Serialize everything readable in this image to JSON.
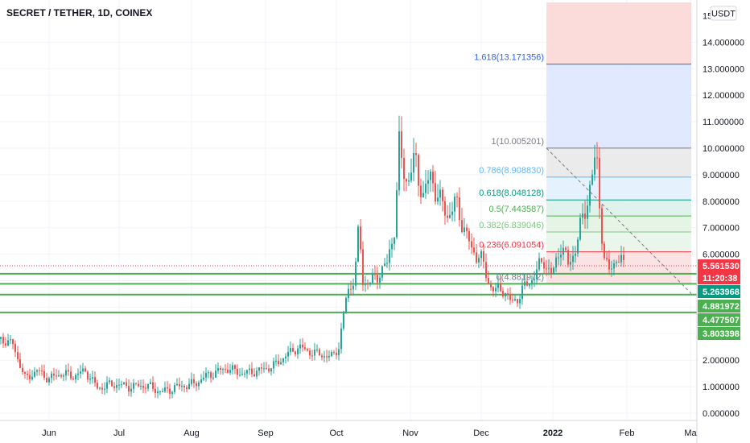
{
  "header": {
    "title": "SECRET / TETHER, 1D, COINEX"
  },
  "currency_button": "USDT",
  "chart_data": {
    "type": "candlestick",
    "title": "SECRET / TETHER, 1D, COINEX",
    "y_axis": {
      "range": [
        0,
        15
      ],
      "ticks": [
        "0.000000",
        "1.000000",
        "2.000000",
        "3.000000",
        "4.000000",
        "5.000000",
        "6.000000",
        "7.000000",
        "8.000000",
        "9.000000",
        "10.000000",
        "11.000000",
        "12.000000",
        "13.000000",
        "14.000000"
      ],
      "top_tick": "15"
    },
    "x_axis": {
      "ticks": [
        "Jun",
        "Jul",
        "Aug",
        "Sep",
        "Oct",
        "Nov",
        "Dec",
        "2022",
        "Feb",
        "Ma"
      ]
    },
    "grid": true,
    "price_badges": [
      {
        "text": "5.561530",
        "value": 5.56153,
        "color": "#f23645"
      },
      {
        "text": "11:20:38",
        "value": 5.15,
        "color": "#f23645"
      },
      {
        "text": "5.263968",
        "value": 5.263968,
        "color": "#089981"
      },
      {
        "text": "4.881972",
        "value": 4.881972,
        "color": "#4caf50"
      },
      {
        "text": "4.477507",
        "value": 4.477507,
        "color": "#4caf50"
      },
      {
        "text": "3.803398",
        "value": 3.803398,
        "color": "#4caf50"
      }
    ],
    "horizontal_lines": [
      5.263968,
      4.881972,
      4.477507,
      3.803398
    ],
    "current_price": 5.56153,
    "fib_levels": [
      {
        "label": "1.618(13.171356)",
        "value": 13.171356,
        "color": "#2962ff",
        "fill": "#dbe5ff"
      },
      {
        "label": "1(10.005201)",
        "value": 10.005201,
        "color": "#787b86",
        "fill": "#e8e8e8"
      },
      {
        "label": "0.786(8.908830)",
        "value": 8.90883,
        "color": "#64b5f6",
        "fill": "#e0f0fd"
      },
      {
        "label": "0.618(8.048128)",
        "value": 8.048128,
        "color": "#089981",
        "fill": "#d9f0e8"
      },
      {
        "label": "0.5(7.443587)",
        "value": 7.443587,
        "color": "#4caf50",
        "fill": "#e0f2e1"
      },
      {
        "label": "0.382(6.839046)",
        "value": 6.839046,
        "color": "#81c784",
        "fill": "#e6f4e7"
      },
      {
        "label": "0.236(6.091054)",
        "value": 6.091054,
        "color": "#f23645",
        "fill": "#fcdede"
      },
      {
        "label": "0(4.881972)",
        "value": 4.881972,
        "color": "#787b86",
        "fill": "#fcdede"
      }
    ],
    "fib_top_zone": {
      "from": 13.171356,
      "to": 15.5,
      "fill": "#fcd5d5"
    }
  }
}
